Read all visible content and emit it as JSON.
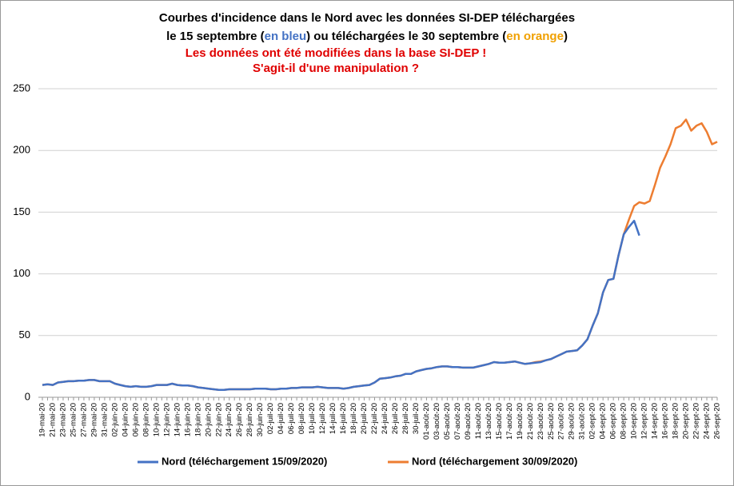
{
  "chart_data": {
    "type": "line",
    "title": {
      "line1": "Courbes d'incidence dans le Nord avec les données SI-DEP téléchargées",
      "line2": [
        "le 15 septembre (",
        "en bleu",
        ") ou téléchargées le 30 septembre (",
        "en orange",
        ")"
      ],
      "subtitle": [
        "Les données ont été modifiées dans la base SI-DEP !",
        "S'agit-il d'une manipulation ?"
      ]
    },
    "categories": [
      "19-mai-20",
      null,
      "21-mai-20",
      null,
      "23-mai-20",
      null,
      "25-mai-20",
      null,
      "27-mai-20",
      null,
      "29-mai-20",
      null,
      "31-mai-20",
      null,
      "02-juin-20",
      null,
      "04-juin-20",
      null,
      "06-juin-20",
      null,
      "08-juin-20",
      null,
      "10-juin-20",
      null,
      "12-juin-20",
      null,
      "14-juin-20",
      null,
      "16-juin-20",
      null,
      "18-juin-20",
      null,
      "20-juin-20",
      null,
      "22-juin-20",
      null,
      "24-juin-20",
      null,
      "26-juin-20",
      null,
      "28-juin-20",
      null,
      "30-juin-20",
      null,
      "02-juil-20",
      null,
      "04-juil-20",
      null,
      "06-juil-20",
      null,
      "08-juil-20",
      null,
      "10-juil-20",
      null,
      "12-juil-20",
      null,
      "14-juil-20",
      null,
      "16-juil-20",
      null,
      "18-juil-20",
      null,
      "20-juil-20",
      null,
      "22-juil-20",
      null,
      "24-juil-20",
      null,
      "26-juil-20",
      null,
      "28-juil-20",
      null,
      "30-juil-20",
      null,
      "01-août-20",
      null,
      "03-août-20",
      null,
      "05-août-20",
      null,
      "07-août-20",
      null,
      "09-août-20",
      null,
      "11-août-20",
      null,
      "13-août-20",
      null,
      "15-août-20",
      null,
      "17-août-20",
      null,
      "19-août-20",
      null,
      "21-août-20",
      null,
      "23-août-20",
      null,
      "25-août-20",
      null,
      "27-août-20",
      null,
      "29-août-20",
      null,
      "31-août-20",
      null,
      "02-sept-20",
      null,
      "04-sept-20",
      null,
      "06-sept-20",
      null,
      "08-sept-20",
      null,
      "10-sept-20",
      null,
      "12-sept-20",
      null,
      "14-sept-20",
      null,
      "16-sept-20",
      null,
      "18-sept-20",
      null,
      "20-sept-20",
      null,
      "22-sept-20",
      null,
      "24-sept-20",
      null,
      "26-sept-20"
    ],
    "series": [
      {
        "name": "Nord (téléchargement 15/09/2020)",
        "color": "#4472c4",
        "values": [
          10,
          10.5,
          10,
          12,
          12.5,
          13,
          13,
          13.5,
          13.5,
          14,
          14,
          13,
          13,
          13,
          11,
          10,
          9,
          8.5,
          9,
          8.5,
          8.5,
          9,
          10,
          10,
          10,
          11,
          10,
          9.5,
          9.5,
          9,
          8,
          7.5,
          7,
          6.5,
          6,
          6,
          6.5,
          6.5,
          6.5,
          6.5,
          6.5,
          7,
          7,
          7,
          6.5,
          6.5,
          7,
          7,
          7.5,
          7.5,
          8,
          8,
          8,
          8.5,
          8,
          7.5,
          7.5,
          7.5,
          7,
          7.5,
          8.5,
          9,
          9.5,
          10,
          12,
          15,
          15.5,
          16,
          17,
          17.5,
          19,
          19,
          21,
          22,
          23,
          23.5,
          24.5,
          25,
          25,
          24.5,
          24.5,
          24,
          24,
          24,
          25,
          26,
          27,
          28.5,
          28,
          28,
          28.5,
          29,
          28,
          27,
          27.5,
          28,
          28.5,
          30,
          31,
          33,
          35,
          37,
          37.5,
          38,
          42,
          47,
          58,
          68,
          85,
          95,
          96,
          115,
          132,
          138,
          143,
          131,
          null,
          null,
          null,
          null,
          null,
          null,
          null,
          null,
          null,
          null,
          null,
          null,
          null,
          null,
          null
        ]
      },
      {
        "name": "Nord (téléchargement 30/09/2020)",
        "color": "#ed7d31",
        "values": [
          10,
          10.5,
          10,
          12,
          12.5,
          13,
          13,
          13.5,
          13.5,
          14,
          14,
          13,
          13,
          13,
          11,
          10,
          9,
          8.5,
          9,
          8.5,
          8.5,
          9,
          10,
          10,
          10,
          11,
          10,
          9.5,
          9.5,
          9,
          8,
          7.5,
          7,
          6.5,
          6,
          6,
          6.5,
          6.5,
          6.5,
          6.5,
          6.5,
          7,
          7,
          7,
          6.5,
          6.5,
          7,
          7,
          7.5,
          7.5,
          8,
          8,
          8,
          8.5,
          8,
          7.5,
          7.5,
          7.5,
          7,
          7.5,
          8.5,
          9,
          9.5,
          10,
          12,
          15,
          15.5,
          16,
          17,
          17.5,
          19,
          19,
          21,
          22,
          23,
          23.5,
          24.5,
          25,
          25,
          24.5,
          24.5,
          24,
          24,
          24,
          25,
          26,
          27,
          28.5,
          28,
          28,
          28.5,
          29,
          28,
          27,
          27.5,
          28.5,
          29,
          30,
          31,
          33,
          35,
          37,
          37.5,
          38,
          42,
          47,
          58,
          68,
          85,
          95,
          96,
          115,
          132,
          144,
          155,
          158,
          157,
          159,
          172,
          186,
          195,
          205,
          218,
          220,
          225,
          216,
          220,
          222,
          215,
          205,
          207
        ]
      }
    ],
    "ylim": [
      0,
      250
    ],
    "yticks": [
      0,
      50,
      100,
      150,
      200,
      250
    ],
    "grid": true,
    "legend": "bottom"
  }
}
